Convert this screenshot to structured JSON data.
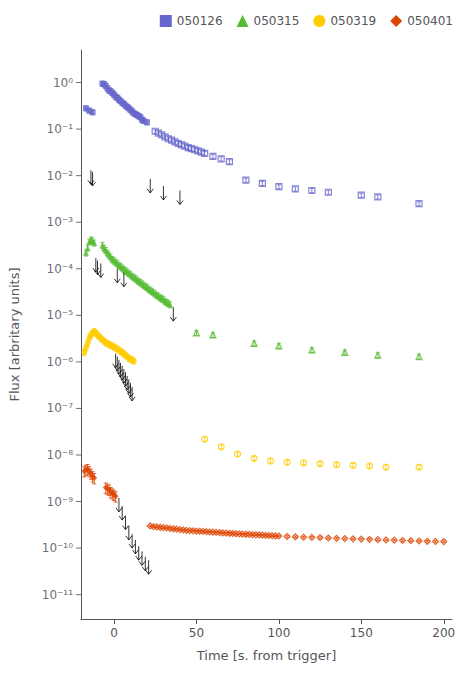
{
  "chart_data": {
    "type": "scatter",
    "xlabel": "Time [s. from trigger]",
    "ylabel": "Flux [arbritary units]",
    "xlim": [
      -20,
      205
    ],
    "ylim": [
      3e-12,
      5.0
    ],
    "xticks": [
      0,
      50,
      100,
      150,
      200
    ],
    "yticks": [
      {
        "value": 1e-11,
        "label": "10⁻¹¹"
      },
      {
        "value": 1e-10,
        "label": "10⁻¹⁰"
      },
      {
        "value": 1e-09,
        "label": "10⁻⁹"
      },
      {
        "value": 1e-08,
        "label": "10⁻⁸"
      },
      {
        "value": 1e-07,
        "label": "10⁻⁷"
      },
      {
        "value": 1e-06,
        "label": "10⁻⁶"
      },
      {
        "value": 1e-05,
        "label": "10⁻⁵"
      },
      {
        "value": 0.0001,
        "label": "10⁻⁴"
      },
      {
        "value": 0.001,
        "label": "10⁻³"
      },
      {
        "value": 0.01,
        "label": "10⁻²"
      },
      {
        "value": 0.1,
        "label": "10⁻¹"
      },
      {
        "value": 1,
        "label": "10⁰"
      }
    ],
    "log": "y",
    "grid": false,
    "legend": "upper right",
    "series": [
      {
        "name": "050126",
        "color": "#6666cc",
        "marker": "square",
        "filled": {
          "x": [
            -17,
            -15,
            -13,
            -7,
            -6,
            -5,
            -4,
            -3,
            -2,
            -1,
            0,
            1,
            2,
            3,
            4,
            5,
            6,
            7,
            8,
            9,
            10,
            11,
            12,
            13,
            14,
            15,
            16,
            17,
            18,
            20
          ],
          "values": [
            0.28,
            0.25,
            0.23,
            0.95,
            0.92,
            0.85,
            0.75,
            0.68,
            0.65,
            0.6,
            0.55,
            0.5,
            0.47,
            0.43,
            0.4,
            0.37,
            0.35,
            0.32,
            0.3,
            0.28,
            0.26,
            0.24,
            0.22,
            0.21,
            0.2,
            0.19,
            0.18,
            0.16,
            0.15,
            0.14
          ],
          "errors": [
            0.0336,
            0.03,
            0.0276,
            0.114,
            0.1104,
            0.102,
            0.09,
            0.0816,
            0.078,
            0.072,
            0.066,
            0.06,
            0.0564,
            0.0516,
            0.048,
            0.0444,
            0.042,
            0.0384,
            0.036,
            0.0336,
            0.0312,
            0.0288,
            0.0264,
            0.0252,
            0.024,
            0.0228,
            0.0216,
            0.0192,
            0.018,
            0.0168
          ]
        },
        "open": {
          "x": [
            25,
            27,
            29,
            31,
            33,
            35,
            37,
            39,
            41,
            43,
            45,
            47,
            49,
            51,
            53,
            55,
            60,
            65,
            70,
            80,
            90,
            100,
            110,
            120,
            130,
            150,
            160,
            185
          ],
          "values": [
            0.09,
            0.082,
            0.075,
            0.068,
            0.062,
            0.058,
            0.053,
            0.049,
            0.046,
            0.043,
            0.04,
            0.038,
            0.036,
            0.034,
            0.032,
            0.03,
            0.026,
            0.023,
            0.02,
            0.008,
            0.0068,
            0.0058,
            0.0052,
            0.0048,
            0.0044,
            0.0038,
            0.0035,
            0.0025
          ],
          "errors": [
            0.009,
            0.0082,
            0.0075,
            0.0068,
            0.0062,
            0.0058,
            0.0053,
            0.0049,
            0.0046,
            0.0043,
            0.004,
            0.0038,
            0.0036,
            0.0034,
            0.0032,
            0.003,
            0.0026,
            0.0023,
            0.002,
            0.0008,
            0.00068,
            0.00058,
            0.00052,
            0.00048,
            0.00044,
            0.00038,
            0.00035,
            0.00025
          ]
        },
        "upper_limits": {
          "x": [
            -14,
            -13,
            22,
            30,
            40
          ],
          "values": [
            0.013,
            0.012,
            0.0085,
            0.006,
            0.0048
          ]
        }
      },
      {
        "name": "050315",
        "color": "#55bb33",
        "marker": "triangle",
        "filled": {
          "x": [
            -17,
            -16,
            -15,
            -14,
            -13,
            -12,
            -7,
            -6,
            -5,
            -4,
            -3,
            -2,
            -1,
            0,
            1,
            2,
            3,
            4,
            5,
            6,
            7,
            8,
            9,
            10,
            11,
            12,
            13,
            14,
            15,
            16,
            17,
            18,
            19,
            20,
            21,
            22,
            23,
            24,
            25,
            26,
            27,
            28,
            29,
            30,
            31,
            32,
            33,
            34
          ],
          "values": [
            0.00022,
            0.00028,
            0.00038,
            0.00042,
            0.0004,
            0.00036,
            0.00032,
            0.00028,
            0.00025,
            0.00022,
            0.0002,
            0.00018,
            0.00016,
            0.00015,
            0.00014,
            0.00013,
            0.00012,
            0.000112,
            0.000105,
            9.8e-05,
            9.2e-05,
            8.6e-05,
            8e-05,
            7.5e-05,
            7e-05,
            6.6e-05,
            6.2e-05,
            5.8e-05,
            5.4e-05,
            5.1e-05,
            4.8e-05,
            4.5e-05,
            4.2e-05,
            4e-05,
            3.7e-05,
            3.5e-05,
            3.3e-05,
            3.1e-05,
            2.9e-05,
            2.7e-05,
            2.6e-05,
            2.4e-05,
            2.3e-05,
            2.2e-05,
            2e-05,
            1.9e-05,
            1.8e-05,
            1.7e-05
          ],
          "errors": [
            3.3e-05,
            4.2e-05,
            5.7e-05,
            6.3e-05,
            6e-05,
            5.4e-05,
            4.8e-05,
            4.2e-05,
            3.75e-05,
            3.3e-05,
            3e-05,
            2.7e-05,
            2.4e-05,
            2.25e-05,
            2.1e-05,
            1.95e-05,
            1.8e-05,
            1.68e-05,
            1.575e-05,
            1.47e-05,
            1.38e-05,
            1.29e-05,
            1.2e-05,
            1.125e-05,
            1.05e-05,
            9.9e-06,
            9.3e-06,
            8.7e-06,
            8.1e-06,
            7.65e-06,
            7.2e-06,
            6.75e-06,
            6.3e-06,
            6e-06,
            5.55e-06,
            5.25e-06,
            4.95e-06,
            4.65e-06,
            4.35e-06,
            4.05e-06,
            3.9e-06,
            3.6e-06,
            3.45e-06,
            3.3e-06,
            3e-06,
            2.85e-06,
            2.7e-06,
            2.55e-06
          ]
        },
        "open": {
          "x": [
            50,
            60,
            85,
            100,
            120,
            140,
            160,
            185
          ],
          "values": [
            4.2e-06,
            3.8e-06,
            2.5e-06,
            2.2e-06,
            1.8e-06,
            1.6e-06,
            1.4e-06,
            1.3e-06
          ],
          "errors": [
            5.04e-07,
            4.56e-07,
            3e-07,
            2.64e-07,
            2.16e-07,
            1.92e-07,
            1.68e-07,
            1.56e-07
          ]
        },
        "upper_limits": {
          "x": [
            -11,
            -10,
            -8,
            2,
            6,
            36
          ],
          "values": [
            0.00017,
            0.00015,
            0.00013,
            0.0001,
            8.2e-05,
            1.5e-05
          ]
        }
      },
      {
        "name": "050319",
        "color": "#ffcc00",
        "marker": "circle",
        "filled": {
          "x": [
            -18,
            -17,
            -16,
            -15,
            -14,
            -13,
            -12,
            -11,
            -10,
            -9,
            -8,
            -7,
            -6,
            -5,
            -4,
            -3,
            -2,
            -1,
            0,
            1,
            2,
            3,
            4,
            5,
            6,
            7,
            8,
            9,
            10,
            11,
            12
          ],
          "values": [
            1.6e-06,
            2e-06,
            2.5e-06,
            3.2e-06,
            3.8e-06,
            4.2e-06,
            4.5e-06,
            4.2e-06,
            3.8e-06,
            3.5e-06,
            3.2e-06,
            3e-06,
            2.8e-06,
            2.6e-06,
            2.5e-06,
            2.4e-06,
            2.3e-06,
            2.2e-06,
            2.1e-06,
            2e-06,
            1.9e-06,
            1.8e-06,
            1.7e-06,
            1.6e-06,
            1.5e-06,
            1.4e-06,
            1.3e-06,
            1.2e-06,
            1.15e-06,
            1.1e-06,
            1.05e-06
          ],
          "errors": [
            2.4e-07,
            3e-07,
            3.75e-07,
            4.8e-07,
            5.7e-07,
            6.3e-07,
            6.75e-07,
            6.3e-07,
            5.7e-07,
            5.25e-07,
            4.8e-07,
            4.5e-07,
            4.2e-07,
            3.9e-07,
            3.75e-07,
            3.6e-07,
            3.45e-07,
            3.3e-07,
            3.15e-07,
            3e-07,
            2.85e-07,
            2.7e-07,
            2.55e-07,
            2.4e-07,
            2.25e-07,
            2.1e-07,
            1.95e-07,
            1.8e-07,
            1.725e-07,
            1.65e-07,
            1.575e-07
          ]
        },
        "open": {
          "x": [
            55,
            65,
            75,
            85,
            95,
            105,
            115,
            125,
            135,
            145,
            155,
            165,
            185
          ],
          "values": [
            2.2e-08,
            1.5e-08,
            1.05e-08,
            8.5e-09,
            7.5e-09,
            7e-09,
            6.8e-09,
            6.5e-09,
            6.2e-09,
            6e-09,
            5.8e-09,
            5.5e-09,
            5.5e-09
          ],
          "errors": [
            2.2e-09,
            1.5e-09,
            1.05e-09,
            8.5e-10,
            7.5e-10,
            7e-10,
            6.8e-10,
            6.5e-10,
            6.2e-10,
            6e-10,
            5.8e-10,
            5.5e-10,
            5.5e-10
          ]
        },
        "upper_limits": {
          "x": [
            1,
            2,
            3,
            4,
            5,
            6,
            7,
            8,
            9,
            10,
            11
          ],
          "values": [
            1.5e-06,
            1.3e-06,
            1.1e-06,
            9.5e-07,
            8.2e-07,
            7e-07,
            6e-07,
            5e-07,
            4.2e-07,
            3.5e-07,
            2.9e-07
          ]
        }
      },
      {
        "name": "050401",
        "color": "#dd4400",
        "marker": "diamond",
        "filled": {
          "x": [
            -18,
            -17,
            -16,
            -15,
            -14,
            -13,
            -12,
            -5,
            -4,
            -3,
            -2,
            -1,
            0,
            1
          ],
          "values": [
            4.5e-09,
            4.8e-09,
            5e-09,
            4.5e-09,
            4e-09,
            3.5e-09,
            3.2e-09,
            2e-09,
            1.9e-09,
            1.8e-09,
            1.6e-09,
            1.5e-09,
            1.4e-09,
            1.3e-09
          ],
          "errors": [
            1.125e-09,
            1.2e-09,
            1.25e-09,
            1.125e-09,
            1e-09,
            8.75e-10,
            8e-10,
            5e-10,
            4.75e-10,
            4.5e-10,
            4e-10,
            3.75e-10,
            3.5e-10,
            3.25e-10
          ]
        },
        "open": {
          "x": [
            22,
            24,
            26,
            28,
            30,
            32,
            34,
            36,
            38,
            40,
            42,
            44,
            46,
            48,
            50,
            52,
            54,
            56,
            58,
            60,
            62,
            64,
            66,
            68,
            70,
            72,
            74,
            76,
            78,
            80,
            82,
            84,
            86,
            88,
            90,
            92,
            94,
            96,
            98,
            100,
            105,
            110,
            115,
            120,
            125,
            130,
            135,
            140,
            145,
            150,
            155,
            160,
            165,
            170,
            175,
            180,
            185,
            190,
            195,
            200
          ],
          "values": [
            3e-10,
            2.9e-10,
            2.85e-10,
            2.8e-10,
            2.75e-10,
            2.7e-10,
            2.65e-10,
            2.6e-10,
            2.55e-10,
            2.5e-10,
            2.45e-10,
            2.4e-10,
            2.38e-10,
            2.35e-10,
            2.32e-10,
            2.3e-10,
            2.28e-10,
            2.25e-10,
            2.22e-10,
            2.2e-10,
            2.18e-10,
            2.15e-10,
            2.12e-10,
            2.1e-10,
            2.08e-10,
            2.06e-10,
            2.04e-10,
            2.02e-10,
            2e-10,
            1.98e-10,
            1.97e-10,
            1.95e-10,
            1.93e-10,
            1.92e-10,
            1.9e-10,
            1.88e-10,
            1.87e-10,
            1.85e-10,
            1.83e-10,
            1.82e-10,
            1.78e-10,
            1.75e-10,
            1.72e-10,
            1.7e-10,
            1.68e-10,
            1.65e-10,
            1.62e-10,
            1.6e-10,
            1.58e-10,
            1.56e-10,
            1.54e-10,
            1.52e-10,
            1.5e-10,
            1.48e-10,
            1.46e-10,
            1.44e-10,
            1.42e-10,
            1.4e-10,
            1.39e-10,
            1.38e-10
          ],
          "errors": [
            1.2e-11,
            1.16e-11,
            1.14e-11,
            1.12e-11,
            1.1e-11,
            1.08e-11,
            1.06e-11,
            1.04e-11,
            1.02e-11,
            1e-11,
            9.8e-12,
            9.6e-12,
            9.52e-12,
            9.4e-12,
            9.28e-12,
            9.2e-12,
            9.12e-12,
            9e-12,
            8.88e-12,
            8.8e-12,
            8.72e-12,
            8.6e-12,
            8.48e-12,
            8.4e-12,
            8.32e-12,
            8.24e-12,
            8.16e-12,
            8.08e-12,
            8e-12,
            7.92e-12,
            7.88e-12,
            7.8e-12,
            7.72e-12,
            7.68e-12,
            7.6e-12,
            7.52e-12,
            7.48e-12,
            7.4e-12,
            7.32e-12,
            7.28e-12,
            7.12e-12,
            7e-12,
            6.88e-12,
            6.8e-12,
            6.72e-12,
            6.6e-12,
            6.48e-12,
            6.4e-12,
            6.32e-12,
            6.24e-12,
            6.16e-12,
            6.08e-12,
            6e-12,
            5.92e-12,
            5.84e-12,
            5.76e-12,
            5.68e-12,
            5.6e-12,
            5.56e-12,
            5.52e-12
          ]
        },
        "upper_limits": {
          "x": [
            3,
            5,
            7,
            9,
            11,
            13,
            15,
            17,
            19,
            21
          ],
          "values": [
            1.2e-09,
            8e-10,
            5e-10,
            3e-10,
            2e-10,
            1.5e-10,
            1.1e-10,
            8.5e-11,
            6.5e-11,
            5.5e-11
          ]
        }
      }
    ]
  }
}
